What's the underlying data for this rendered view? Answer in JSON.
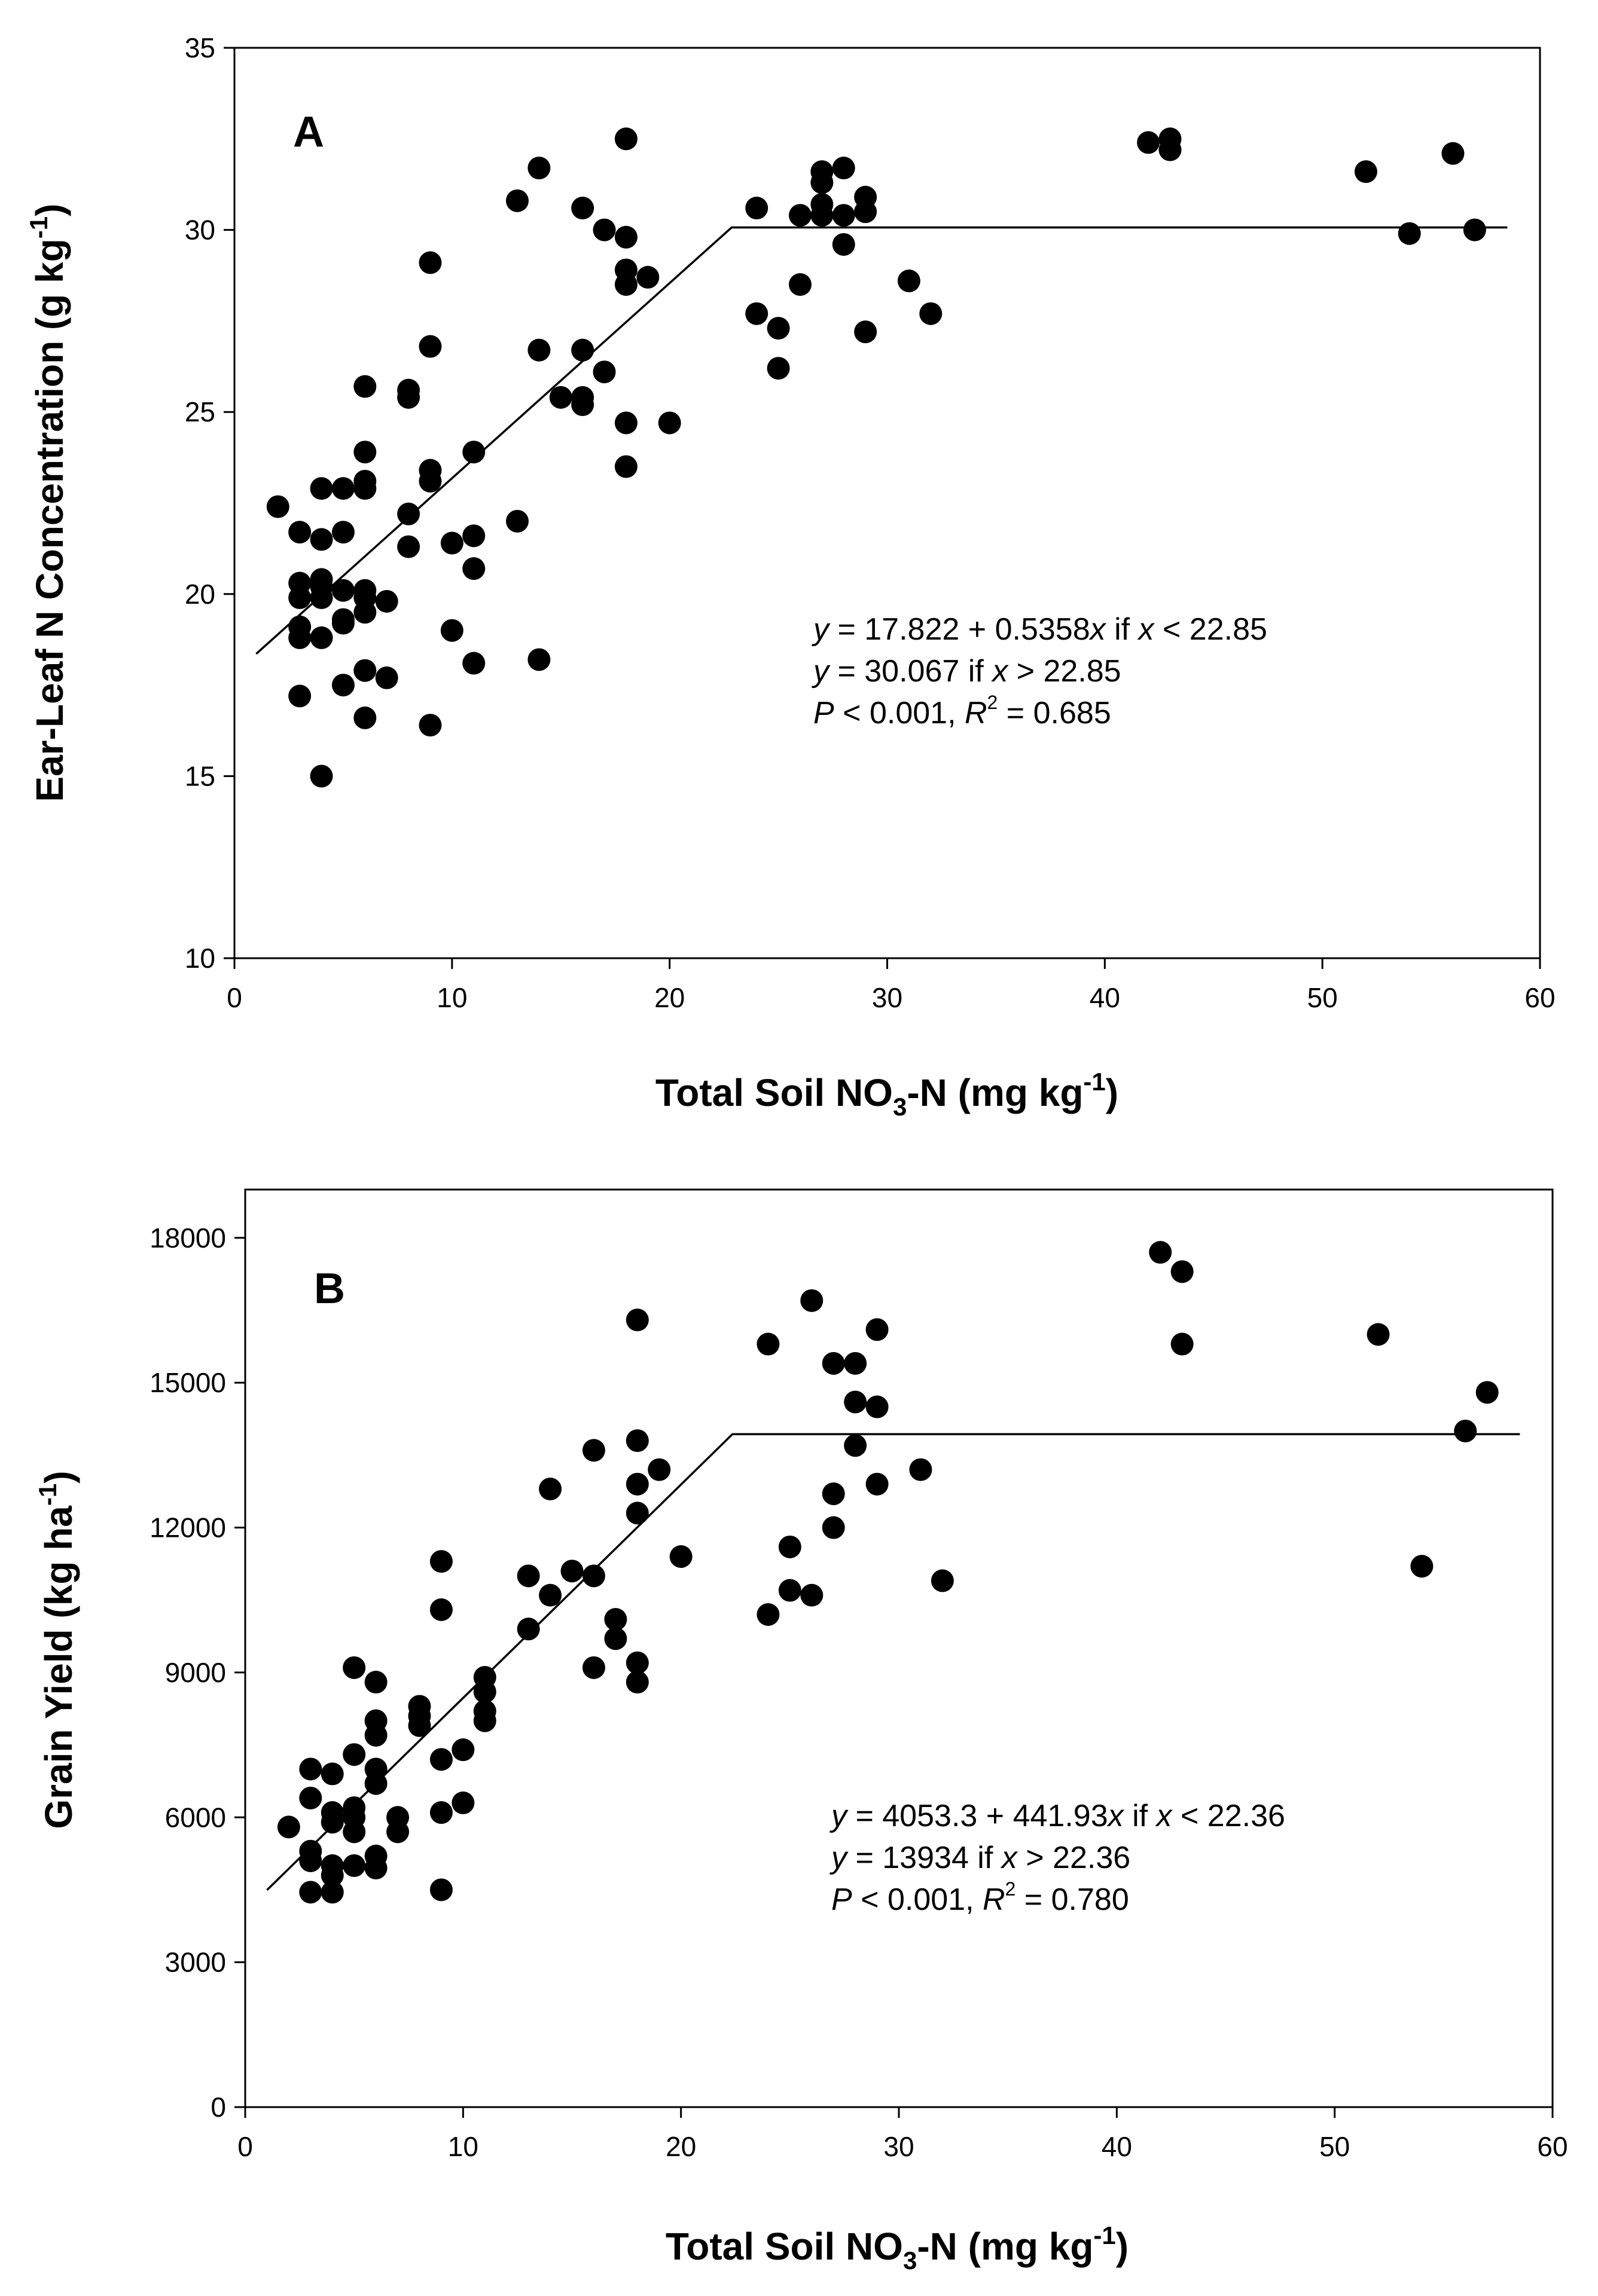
{
  "chart_data": [
    {
      "type": "scatter",
      "panel_label": "A",
      "xlabel": "Total Soil NO3-N (mg kg-1)",
      "ylabel": "Ear-Leaf N Concentration (g kg-1)",
      "xlabel_parts": {
        "main": "Total Soil NO",
        "sub": "3",
        "mid": "-N (mg kg",
        "sup": "-1",
        "end": ")"
      },
      "ylabel_parts": {
        "main": "Ear-Leaf N Concentration (g kg",
        "sup": "-1",
        "end": ")"
      },
      "xlim": [
        0,
        60
      ],
      "ylim": [
        10,
        35
      ],
      "xticks": [
        0,
        10,
        20,
        30,
        40,
        50,
        60
      ],
      "yticks": [
        10,
        15,
        20,
        25,
        30,
        35
      ],
      "x_tick_labels": [
        "0",
        "10",
        "20",
        "30",
        "40",
        "50",
        "60"
      ],
      "y_tick_labels": [
        "10",
        "15",
        "20",
        "25",
        "30",
        "35"
      ],
      "fit": {
        "intercept": 17.822,
        "slope": 0.5358,
        "breakpoint": 22.85,
        "plateau": 30.067,
        "x_start": 1,
        "x_end": 58.5
      },
      "equation": {
        "line1": {
          "y": "y",
          "pre": " = 17.822 + 0.5358",
          "x1": "x",
          "mid": " if ",
          "x2": "x",
          "post": " < 22.85"
        },
        "line2": {
          "y": "y",
          "pre": " = 30.067 if ",
          "x": "x",
          "post": " > 22.85"
        },
        "line3": {
          "p": "P",
          "pre": " < 0.001, ",
          "r": "R",
          "sup": "2",
          "post": " = 0.685"
        }
      },
      "points": [
        [
          2,
          22.4
        ],
        [
          3,
          21.7
        ],
        [
          3,
          20.3
        ],
        [
          3,
          19.9
        ],
        [
          3,
          19.1
        ],
        [
          3,
          18.8
        ],
        [
          3,
          17.2
        ],
        [
          4,
          22.9
        ],
        [
          4,
          21.5
        ],
        [
          4,
          20.4
        ],
        [
          4,
          20.2
        ],
        [
          4,
          19.9
        ],
        [
          4,
          18.8
        ],
        [
          4,
          15.0
        ],
        [
          5,
          22.9
        ],
        [
          5,
          21.7
        ],
        [
          5,
          20.1
        ],
        [
          5,
          19.3
        ],
        [
          5,
          19.2
        ],
        [
          5,
          17.5
        ],
        [
          6,
          25.7
        ],
        [
          6,
          23.9
        ],
        [
          6,
          23.1
        ],
        [
          6,
          22.9
        ],
        [
          6,
          20.1
        ],
        [
          6,
          19.9
        ],
        [
          6,
          19.5
        ],
        [
          6,
          17.9
        ],
        [
          6,
          16.6
        ],
        [
          7,
          19.8
        ],
        [
          7,
          17.7
        ],
        [
          8,
          25.6
        ],
        [
          8,
          25.4
        ],
        [
          8,
          22.2
        ],
        [
          8,
          21.3
        ],
        [
          9,
          29.1
        ],
        [
          9,
          26.8
        ],
        [
          9,
          23.4
        ],
        [
          9,
          23.1
        ],
        [
          9,
          16.4
        ],
        [
          10,
          21.4
        ],
        [
          10,
          19.0
        ],
        [
          11,
          23.9
        ],
        [
          11,
          21.6
        ],
        [
          11,
          20.7
        ],
        [
          11,
          18.1
        ],
        [
          13,
          30.8
        ],
        [
          13,
          22.0
        ],
        [
          14,
          31.7
        ],
        [
          14,
          26.7
        ],
        [
          14,
          18.2
        ],
        [
          15,
          25.4
        ],
        [
          16,
          30.6
        ],
        [
          16,
          26.7
        ],
        [
          16,
          25.4
        ],
        [
          16,
          25.2
        ],
        [
          17,
          30.0
        ],
        [
          17,
          26.1
        ],
        [
          18,
          32.5
        ],
        [
          18,
          29.8
        ],
        [
          18,
          28.9
        ],
        [
          18,
          28.5
        ],
        [
          18,
          24.7
        ],
        [
          18,
          23.5
        ],
        [
          19,
          28.7
        ],
        [
          20,
          24.7
        ],
        [
          24,
          30.6
        ],
        [
          24,
          27.7
        ],
        [
          25,
          27.3
        ],
        [
          25,
          26.2
        ],
        [
          26,
          30.4
        ],
        [
          26,
          28.5
        ],
        [
          27,
          31.6
        ],
        [
          27,
          31.3
        ],
        [
          27,
          30.7
        ],
        [
          27,
          30.4
        ],
        [
          28,
          31.7
        ],
        [
          28,
          30.4
        ],
        [
          28,
          29.6
        ],
        [
          29,
          30.9
        ],
        [
          29,
          30.5
        ],
        [
          29,
          27.2
        ],
        [
          31,
          28.6
        ],
        [
          32,
          27.7
        ],
        [
          42,
          32.4
        ],
        [
          43,
          32.5
        ],
        [
          43,
          32.2
        ],
        [
          52,
          31.6
        ],
        [
          54,
          29.9
        ],
        [
          56,
          32.1
        ],
        [
          57,
          30.0
        ]
      ]
    },
    {
      "type": "scatter",
      "panel_label": "B",
      "xlabel": "Total Soil NO3-N (mg kg-1)",
      "ylabel": "Grain Yield (kg ha-1)",
      "xlabel_parts": {
        "main": "Total Soil NO",
        "sub": "3",
        "mid": "-N (mg kg",
        "sup": "-1",
        "end": ")"
      },
      "ylabel_parts": {
        "main": "Grain Yield (kg ha",
        "sup": "-1",
        "end": ")"
      },
      "xlim": [
        0,
        60
      ],
      "ylim": [
        0,
        19000
      ],
      "xticks": [
        0,
        10,
        20,
        30,
        40,
        50,
        60
      ],
      "yticks": [
        0,
        3000,
        6000,
        9000,
        12000,
        15000,
        18000
      ],
      "x_tick_labels": [
        "0",
        "10",
        "20",
        "30",
        "40",
        "50",
        "60"
      ],
      "y_tick_labels": [
        "0",
        "3000",
        "6000",
        "9000",
        "12000",
        "15000",
        "18000"
      ],
      "fit": {
        "intercept": 4053.3,
        "slope": 441.93,
        "breakpoint": 22.36,
        "plateau": 13934,
        "x_start": 1,
        "x_end": 58.5
      },
      "equation": {
        "line1": {
          "y": "y",
          "pre": " = 4053.3 + 441.93",
          "x1": "x",
          "mid": " if ",
          "x2": "x",
          "post": " < 22.36"
        },
        "line2": {
          "y": "y",
          "pre": " = 13934 if ",
          "x": "x",
          "post": " > 22.36"
        },
        "line3": {
          "p": "P",
          "pre": " < 0.001, ",
          "r": "R",
          "sup": "2",
          "post": " = 0.780"
        }
      },
      "points": [
        [
          2,
          5800
        ],
        [
          3,
          7000
        ],
        [
          3,
          6400
        ],
        [
          3,
          5300
        ],
        [
          3,
          5100
        ],
        [
          3,
          4450
        ],
        [
          4,
          6900
        ],
        [
          4,
          6100
        ],
        [
          4,
          5900
        ],
        [
          4,
          5000
        ],
        [
          4,
          4800
        ],
        [
          4,
          4450
        ],
        [
          5,
          9100
        ],
        [
          5,
          7300
        ],
        [
          5,
          6200
        ],
        [
          5,
          6000
        ],
        [
          5,
          5700
        ],
        [
          5,
          5000
        ],
        [
          6,
          8800
        ],
        [
          6,
          8000
        ],
        [
          6,
          7700
        ],
        [
          6,
          7000
        ],
        [
          6,
          6700
        ],
        [
          6,
          5200
        ],
        [
          6,
          4950
        ],
        [
          7,
          6000
        ],
        [
          7,
          5700
        ],
        [
          8,
          8300
        ],
        [
          8,
          8100
        ],
        [
          8,
          7900
        ],
        [
          9,
          11300
        ],
        [
          9,
          10300
        ],
        [
          9,
          7200
        ],
        [
          9,
          6100
        ],
        [
          9,
          4500
        ],
        [
          10,
          7400
        ],
        [
          10,
          6300
        ],
        [
          11,
          8900
        ],
        [
          11,
          8600
        ],
        [
          11,
          8200
        ],
        [
          11,
          8000
        ],
        [
          13,
          11000
        ],
        [
          13,
          9900
        ],
        [
          14,
          12800
        ],
        [
          14,
          10600
        ],
        [
          15,
          11100
        ],
        [
          16,
          13600
        ],
        [
          16,
          11000
        ],
        [
          16,
          9100
        ],
        [
          17,
          10100
        ],
        [
          17,
          9700
        ],
        [
          18,
          16300
        ],
        [
          18,
          13800
        ],
        [
          18,
          12900
        ],
        [
          18,
          12300
        ],
        [
          18,
          9200
        ],
        [
          18,
          8800
        ],
        [
          19,
          13200
        ],
        [
          20,
          11400
        ],
        [
          24,
          15800
        ],
        [
          24,
          10200
        ],
        [
          25,
          11600
        ],
        [
          25,
          10700
        ],
        [
          26,
          16700
        ],
        [
          26,
          10600
        ],
        [
          27,
          15400
        ],
        [
          27,
          12700
        ],
        [
          27,
          12000
        ],
        [
          28,
          15400
        ],
        [
          28,
          14600
        ],
        [
          28,
          13700
        ],
        [
          29,
          16100
        ],
        [
          29,
          14500
        ],
        [
          29,
          12900
        ],
        [
          31,
          13200
        ],
        [
          32,
          10900
        ],
        [
          42,
          17700
        ],
        [
          43,
          17300
        ],
        [
          43,
          15800
        ],
        [
          52,
          16000
        ],
        [
          54,
          11200
        ],
        [
          56,
          14000
        ],
        [
          57,
          14800
        ]
      ]
    }
  ]
}
